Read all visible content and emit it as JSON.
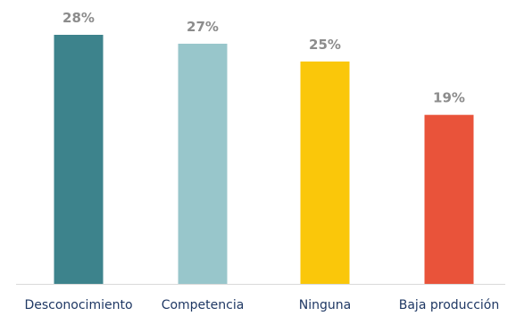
{
  "chart_data": {
    "type": "bar",
    "categories": [
      "Desconocimiento",
      "Competencia",
      "Ninguna",
      "Baja producción"
    ],
    "values": [
      28,
      27,
      25,
      19
    ],
    "data_labels": [
      "28%",
      "27%",
      "25%",
      "19%"
    ],
    "value_unit": "%",
    "ylim": [
      0,
      28
    ],
    "grid": false,
    "legend": "none",
    "colors": [
      "#3d838c",
      "#98c6cb",
      "#fac70a",
      "#e9533a"
    ],
    "axis_color": "#d9d9d9",
    "label_color": "#8c8c8c",
    "tick_label_color": "#1f3864"
  }
}
